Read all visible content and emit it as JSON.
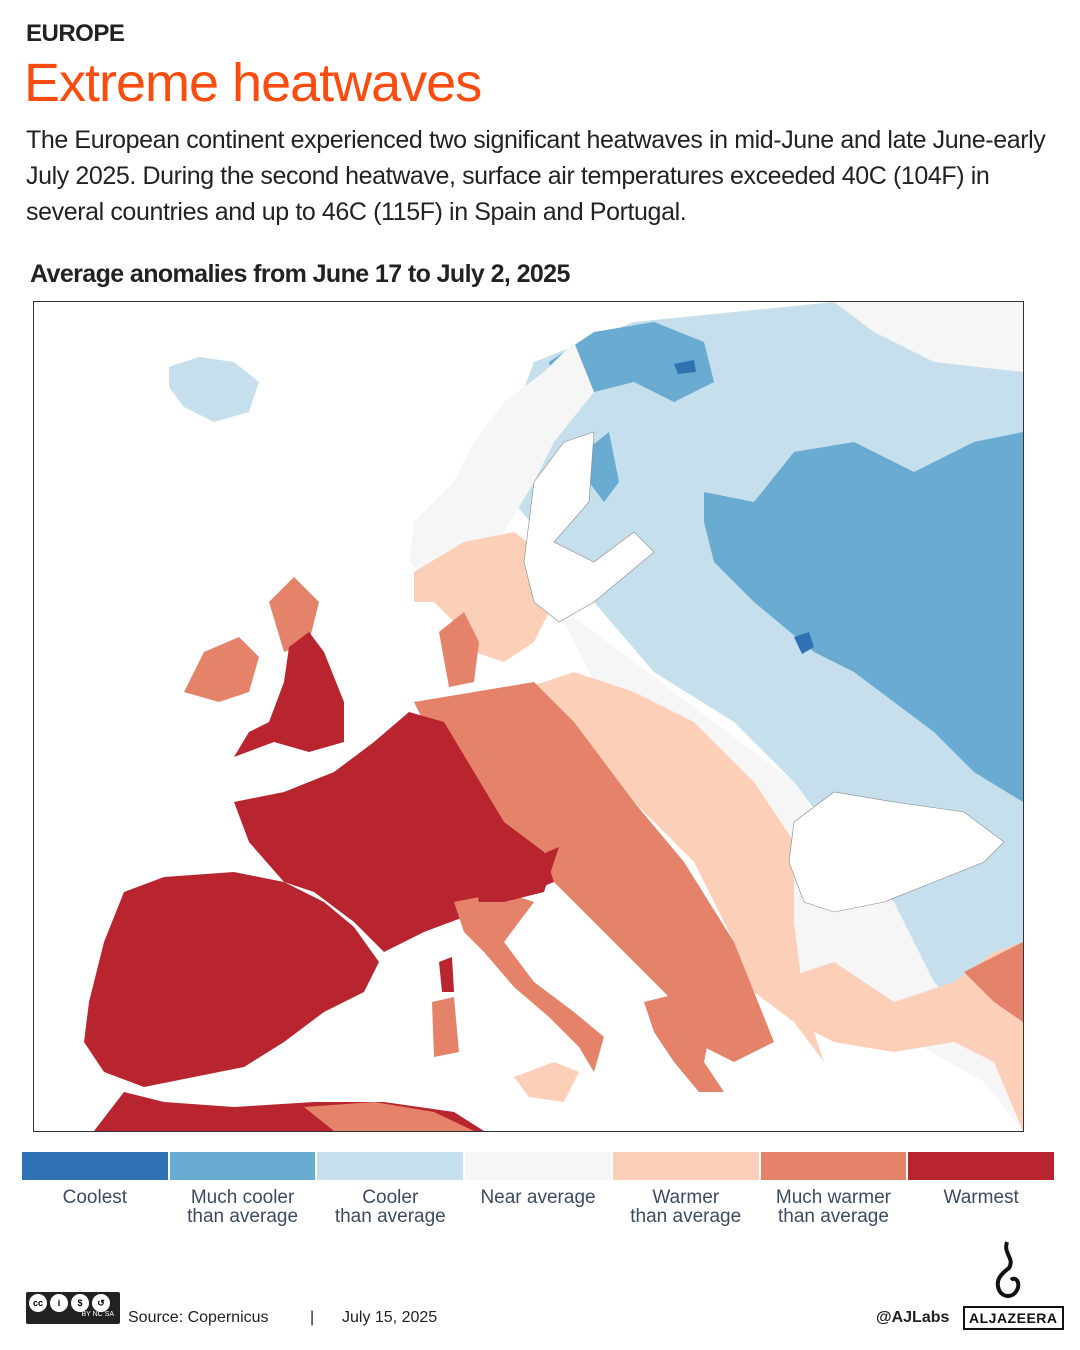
{
  "header": {
    "kicker": "EUROPE",
    "title": "Extreme heatwaves",
    "subtitle": "The European continent experienced two significant heatwaves in mid-June and late June-early July 2025. During the second heatwave, surface air temperatures exceeded 40C (104F) in several countries and up to 46C (115F) in Spain and Portugal."
  },
  "map": {
    "title": "Average anomalies from June 17 to July 2, 2025"
  },
  "legend": [
    {
      "label": "Coolest",
      "color": "#2e72b3"
    },
    {
      "label": "Much cooler\nthan average",
      "color": "#6aabd1"
    },
    {
      "label": "Cooler\nthan average",
      "color": "#c5dfec"
    },
    {
      "label": "Near average",
      "color": "#f6f6f6"
    },
    {
      "label": "Warmer\nthan average",
      "color": "#fbcfb8"
    },
    {
      "label": "Much warmer\nthan average",
      "color": "#e5826a"
    },
    {
      "label": "Warmest",
      "color": "#b9252f"
    }
  ],
  "footer": {
    "license_icon": "creative-commons-by-nc-sa",
    "license_text": "BY NC SA",
    "source": "Source:  Copernicus",
    "separator": "|",
    "date": "July 15, 2025",
    "handle": "@AJLabs",
    "logo": "ALJAZEERA"
  }
}
